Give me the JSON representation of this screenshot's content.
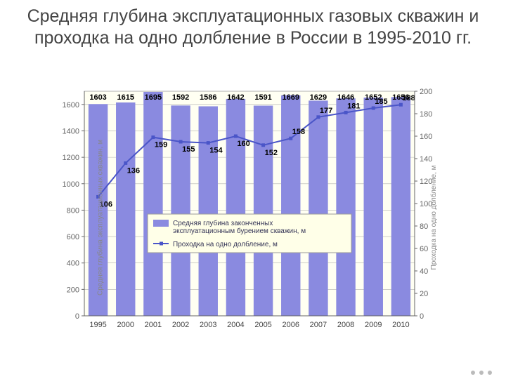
{
  "title": "Средняя глубина эксплуатационных газовых скважин и проходка на одно долбление в России в 1995-2010 гг.",
  "chart": {
    "type": "bar+line",
    "background_color": "#fffff2",
    "grid_color": "#b0b0b0",
    "bar_color": "#8a8ae0",
    "line_color": "#4a55c8",
    "marker_color": "#4a55c8",
    "text_color": "#000000",
    "axis_font_size": 11,
    "value_font_size": 11,
    "value_font_weight": "bold",
    "categories": [
      "1995",
      "2000",
      "2001",
      "2002",
      "2003",
      "2004",
      "2005",
      "2006",
      "2007",
      "2008",
      "2009",
      "2010"
    ],
    "bars": {
      "label": "Средняя глубина законченных эксплуатационным бурением скважин, м",
      "values": [
        1603,
        1615,
        1695,
        1592,
        1586,
        1642,
        1591,
        1669,
        1629,
        1646,
        1652,
        1656
      ],
      "axis_label": "Средняя глубина эксплуатационных скважин, м",
      "ylim": [
        0,
        1700
      ],
      "ticks": [
        0,
        200,
        400,
        600,
        800,
        1000,
        1200,
        1400,
        1600
      ]
    },
    "line": {
      "label": "Проходка на одно долбление, м",
      "values": [
        106,
        136,
        159,
        155,
        154,
        160,
        152,
        158,
        177,
        181,
        185,
        188
      ],
      "axis_label": "Проходка на одно долбление, м",
      "ylim": [
        0,
        200
      ],
      "ticks": [
        0,
        20,
        40,
        60,
        80,
        100,
        120,
        140,
        160,
        180,
        200
      ]
    },
    "bar_width": 0.7,
    "line_width": 2,
    "marker_size": 5,
    "legend_bg": "#ffffe8",
    "legend_font_size": 10
  }
}
